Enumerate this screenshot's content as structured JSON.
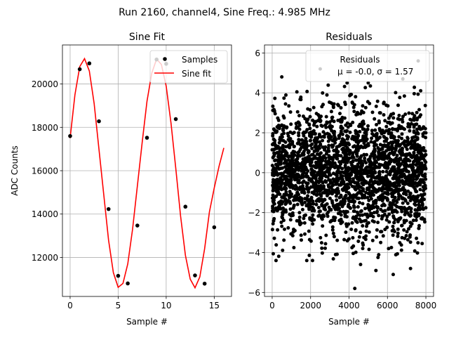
{
  "suptitle": "Run 2160, channel4, Sine Freq.: 4.985 MHz",
  "chart_data": [
    {
      "type": "scatter",
      "title": "Sine Fit",
      "xlabel": "Sample #",
      "ylabel": "ADC Counts",
      "xlim": [
        -0.8,
        16.8
      ],
      "ylim": [
        10200,
        21800
      ],
      "xticks": [
        0,
        5,
        10,
        15
      ],
      "yticks": [
        12000,
        14000,
        16000,
        18000,
        20000
      ],
      "grid": true,
      "legend_position": "top-right",
      "series": [
        {
          "name": "Samples",
          "kind": "scatter",
          "color": "#000000",
          "x": [
            0,
            1,
            2,
            3,
            4,
            5,
            6,
            7,
            8,
            9,
            10,
            11,
            12,
            13,
            14,
            15
          ],
          "y": [
            17600,
            20680,
            20950,
            18280,
            14230,
            11150,
            10800,
            13470,
            17520,
            21130,
            20930,
            18380,
            14340,
            11170,
            10790,
            13390
          ]
        },
        {
          "name": "Sine fit",
          "kind": "line",
          "color": "#ff0000",
          "x": [
            0,
            0.5,
            1,
            1.5,
            2,
            2.5,
            3,
            3.5,
            4,
            4.5,
            5,
            5.5,
            6,
            6.5,
            7,
            7.5,
            8,
            8.5,
            9,
            9.5,
            10,
            10.5,
            11,
            11.5,
            12,
            12.5,
            13,
            13.5,
            14,
            14.5,
            15,
            15.5,
            16
          ],
          "y": [
            17500,
            19500,
            20800,
            21170,
            20600,
            19100,
            17000,
            14900,
            12800,
            11300,
            10620,
            10800,
            11700,
            13300,
            15300,
            17300,
            19200,
            20500,
            21150,
            20900,
            19900,
            18200,
            16100,
            13900,
            12100,
            11000,
            10600,
            11100,
            12400,
            14100,
            15200,
            16200,
            17050
          ]
        }
      ]
    },
    {
      "type": "scatter",
      "title": "Residuals",
      "xlabel": "Sample #",
      "ylabel": "",
      "xlim": [
        -400,
        8400
      ],
      "ylim": [
        -6.2,
        6.4
      ],
      "xticks": [
        0,
        2000,
        4000,
        6000,
        8000
      ],
      "yticks": [
        -6,
        -4,
        -2,
        0,
        2,
        4,
        6
      ],
      "grid": true,
      "legend_position": "top-right",
      "legend_title": "Residuals",
      "legend_stats": "μ = -0.0, σ = 1.57",
      "mu": -0.0,
      "sigma": 1.57,
      "n_points": 8000,
      "series": [
        {
          "name": "Residuals",
          "color": "#000000",
          "x": [
            4300,
            2500,
            500,
            7600,
            6300,
            3900,
            1800,
            5400,
            7200,
            200,
            2100,
            4600,
            6800,
            3300,
            5000
          ],
          "y": [
            -5.8,
            5.2,
            4.8,
            5.6,
            -5.1,
            4.5,
            -4.4,
            -4.9,
            -4.8,
            -4.4,
            -4.4,
            -4.6,
            4.7,
            -4.1,
            4.5
          ]
        }
      ]
    }
  ]
}
